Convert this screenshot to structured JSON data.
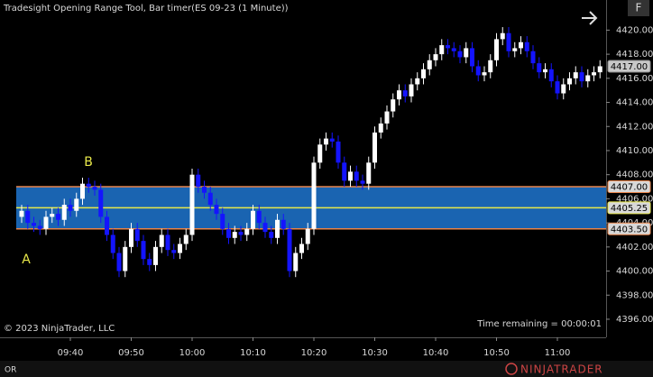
{
  "chart_data": {
    "type": "candlestick",
    "title": "Tradesight Opening Range Tool, Bar timer(ES 09-23 (1 Minute))",
    "x": [
      "09:32",
      "09:33",
      "09:34",
      "09:35",
      "09:36",
      "09:37",
      "09:38",
      "09:39",
      "09:40",
      "09:41",
      "09:42",
      "09:43",
      "09:44",
      "09:45",
      "09:46",
      "09:47",
      "09:48",
      "09:49",
      "09:50",
      "09:51",
      "09:52",
      "09:53",
      "09:54",
      "09:55",
      "09:56",
      "09:57",
      "09:58",
      "09:59",
      "10:00",
      "10:01",
      "10:02",
      "10:03",
      "10:04",
      "10:05",
      "10:06",
      "10:07",
      "10:08",
      "10:09",
      "10:10",
      "10:11",
      "10:12",
      "10:13",
      "10:14",
      "10:15",
      "10:16",
      "10:17",
      "10:18",
      "10:19",
      "10:20",
      "10:21",
      "10:22",
      "10:23",
      "10:24",
      "10:25",
      "10:26",
      "10:27",
      "10:28",
      "10:29",
      "10:30",
      "10:31",
      "10:32",
      "10:33",
      "10:34",
      "10:35",
      "10:36",
      "10:37",
      "10:38",
      "10:39",
      "10:40",
      "10:41",
      "10:42",
      "10:43",
      "10:44",
      "10:45",
      "10:46",
      "10:47",
      "10:48",
      "10:49",
      "10:50",
      "10:51",
      "10:52",
      "10:53",
      "10:54",
      "10:55",
      "10:56",
      "10:57",
      "10:58",
      "10:59",
      "11:00",
      "11:01",
      "11:02",
      "11:03",
      "11:04",
      "11:05",
      "11:06",
      "11:07"
    ],
    "open": [
      4404.5,
      4405.0,
      4404.0,
      4403.75,
      4403.5,
      4404.5,
      4404.75,
      4404.25,
      4405.5,
      4405.0,
      4406.0,
      4407.25,
      4407.0,
      4406.75,
      4404.5,
      4403.0,
      4401.5,
      4400.0,
      4402.0,
      4403.5,
      4402.5,
      4401.0,
      4400.5,
      4402.0,
      4403.0,
      4401.75,
      4401.5,
      4402.25,
      4403.0,
      4408.0,
      4407.0,
      4406.5,
      4405.5,
      4404.75,
      4403.5,
      4402.75,
      4403.25,
      4403.0,
      4403.5,
      4405.0,
      4404.0,
      4403.25,
      4402.75,
      4404.25,
      4403.5,
      4400.0,
      4401.5,
      4402.25,
      4403.5,
      4409.0,
      4410.5,
      4411.0,
      4410.75,
      4409.0,
      4407.5,
      4408.25,
      4407.5,
      4407.25,
      4409.0,
      4411.5,
      4412.25,
      4413.25,
      4414.25,
      4415.0,
      4414.5,
      4415.5,
      4416.0,
      4416.75,
      4417.5,
      4418.0,
      4418.75,
      4418.5,
      4418.25,
      4417.75,
      4418.5,
      4417.0,
      4416.25,
      4416.5,
      4417.5,
      4419.25,
      4419.75,
      4418.25,
      4418.5,
      4419.0,
      4418.25,
      4417.25,
      4416.5,
      4416.75,
      4415.75,
      4414.75,
      4415.5,
      4416.0,
      4416.5,
      4415.75,
      4416.25,
      4416.5
    ],
    "high": [
      4405.5,
      4405.5,
      4404.5,
      4404.25,
      4405.0,
      4405.25,
      4405.25,
      4406.0,
      4406.0,
      4406.5,
      4407.75,
      4407.75,
      4407.5,
      4407.25,
      4405.0,
      4403.5,
      4402.0,
      4402.5,
      4404.0,
      4404.0,
      4403.0,
      4401.5,
      4402.5,
      4403.5,
      4403.5,
      4402.25,
      4402.75,
      4403.5,
      4408.5,
      4408.5,
      4407.5,
      4407.0,
      4406.0,
      4405.25,
      4404.0,
      4403.75,
      4403.75,
      4404.0,
      4405.5,
      4405.5,
      4404.5,
      4403.75,
      4404.75,
      4404.75,
      4404.0,
      4402.0,
      4402.75,
      4404.0,
      4409.5,
      4411.0,
      4411.5,
      4411.5,
      4411.25,
      4409.5,
      4408.75,
      4408.75,
      4408.0,
      4409.5,
      4412.0,
      4412.75,
      4413.75,
      4414.75,
      4415.5,
      4415.5,
      4416.0,
      4416.5,
      4417.25,
      4418.0,
      4418.5,
      4419.25,
      4419.25,
      4419.0,
      4418.75,
      4419.0,
      4419.0,
      4417.5,
      4417.0,
      4418.0,
      4419.75,
      4420.25,
      4420.25,
      4419.0,
      4419.5,
      4419.5,
      4418.75,
      4417.75,
      4417.25,
      4417.25,
      4416.25,
      4416.0,
      4416.5,
      4417.0,
      4417.0,
      4416.75,
      4417.0,
      4417.5
    ],
    "low": [
      4404.0,
      4403.5,
      4403.25,
      4403.0,
      4403.0,
      4404.0,
      4403.75,
      4403.75,
      4404.5,
      4404.5,
      4405.5,
      4406.5,
      4406.25,
      4404.0,
      4402.5,
      4401.0,
      4399.5,
      4399.5,
      4401.5,
      4402.0,
      4400.5,
      4400.0,
      4400.0,
      4401.5,
      4401.25,
      4401.0,
      4401.0,
      4401.75,
      4402.5,
      4406.5,
      4406.0,
      4405.0,
      4404.25,
      4403.0,
      4402.25,
      4402.25,
      4402.5,
      4402.5,
      4403.0,
      4403.5,
      4402.75,
      4402.25,
      4402.25,
      4403.0,
      4399.5,
      4399.5,
      4401.0,
      4401.75,
      4403.0,
      4408.5,
      4410.0,
      4410.25,
      4408.5,
      4407.0,
      4407.0,
      4407.0,
      4406.75,
      4406.75,
      4408.5,
      4411.0,
      4411.75,
      4412.75,
      4413.75,
      4414.0,
      4414.0,
      4415.0,
      4415.5,
      4416.25,
      4417.0,
      4417.5,
      4418.0,
      4417.75,
      4417.25,
      4417.25,
      4416.5,
      4415.75,
      4415.75,
      4416.0,
      4417.0,
      4418.75,
      4417.75,
      4417.75,
      4418.0,
      4417.75,
      4416.75,
      4416.0,
      4416.0,
      4415.25,
      4414.25,
      4414.25,
      4415.0,
      4415.5,
      4415.25,
      4415.25,
      4415.75,
      4416.0
    ],
    "close": [
      4405.0,
      4404.0,
      4403.75,
      4403.5,
      4404.5,
      4404.75,
      4404.25,
      4405.5,
      4405.0,
      4406.0,
      4407.25,
      4407.0,
      4406.75,
      4404.5,
      4403.0,
      4401.5,
      4400.0,
      4402.0,
      4403.5,
      4402.5,
      4401.0,
      4400.5,
      4402.0,
      4403.0,
      4401.75,
      4401.5,
      4402.25,
      4403.0,
      4408.0,
      4407.0,
      4406.5,
      4405.5,
      4404.75,
      4403.5,
      4402.75,
      4403.25,
      4403.0,
      4403.5,
      4405.0,
      4404.0,
      4403.25,
      4402.75,
      4404.25,
      4403.5,
      4400.0,
      4401.5,
      4402.25,
      4403.5,
      4409.0,
      4410.5,
      4411.0,
      4410.75,
      4409.0,
      4407.5,
      4408.25,
      4407.5,
      4407.25,
      4409.0,
      4411.5,
      4412.25,
      4413.25,
      4414.25,
      4415.0,
      4414.5,
      4415.5,
      4416.0,
      4416.75,
      4417.5,
      4418.0,
      4418.75,
      4418.5,
      4418.25,
      4417.75,
      4418.5,
      4417.0,
      4416.25,
      4416.5,
      4417.5,
      4419.25,
      4419.75,
      4418.25,
      4418.5,
      4419.0,
      4418.25,
      4417.25,
      4416.5,
      4416.75,
      4415.75,
      4414.75,
      4415.5,
      4416.0,
      4416.5,
      4415.75,
      4416.25,
      4416.5,
      4417.0
    ],
    "up_color": "#ffffff",
    "down_color": "#1414ff",
    "ylim": [
      4394.5,
      4422.5
    ],
    "yticks": [
      {
        "value": 4396,
        "label": "4396.00"
      },
      {
        "value": 4398,
        "label": "4398.00"
      },
      {
        "value": 4400,
        "label": "4400.00"
      },
      {
        "value": 4402,
        "label": "4402.00"
      },
      {
        "value": 4404,
        "label": "4404.00"
      },
      {
        "value": 4406,
        "label": "4406.00"
      },
      {
        "value": 4408,
        "label": "4408.00"
      },
      {
        "value": 4410,
        "label": "4410.00"
      },
      {
        "value": 4412,
        "label": "4412.00"
      },
      {
        "value": 4414,
        "label": "4414.00"
      },
      {
        "value": 4416,
        "label": "4416.00"
      },
      {
        "value": 4418,
        "label": "4418.00"
      },
      {
        "value": 4420,
        "label": "4420.00"
      }
    ],
    "xticks": [
      "09:40",
      "09:50",
      "10:00",
      "10:10",
      "10:20",
      "10:30",
      "10:40",
      "10:50",
      "11:00"
    ],
    "opening_range": {
      "high": {
        "value": 4407,
        "label": "4407.00"
      },
      "mid": {
        "value": 4405.25,
        "label": "4405.25"
      },
      "low": {
        "value": 4403.5,
        "label": "4403.50"
      },
      "fill_color": "#1c6cc0",
      "edge_color": "#e8844a",
      "mid_color": "#e8e84a"
    },
    "last_price": {
      "value": 4417,
      "label": "4417.00"
    },
    "annotations": [
      "A",
      "B"
    ],
    "copyright": "© 2023 NinjaTrader, LLC",
    "timer": "Time remaining = 00:00:01",
    "tab": "OR",
    "button": "F",
    "logo": "NINJATRADER"
  }
}
